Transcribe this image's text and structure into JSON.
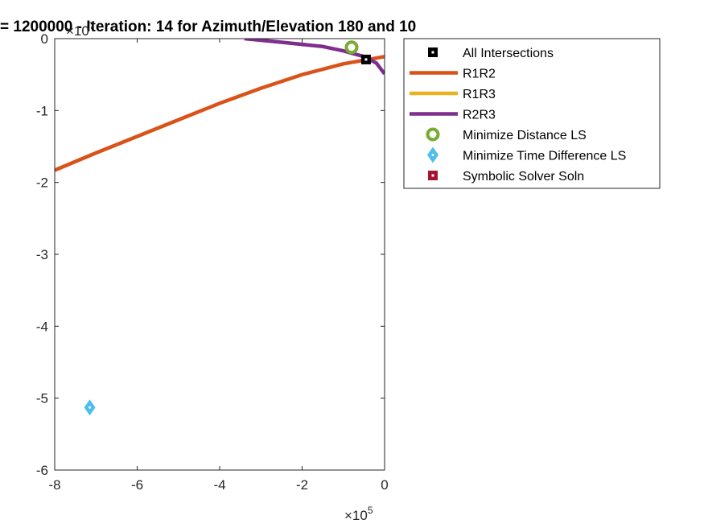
{
  "chart_data": {
    "type": "line",
    "title": "= 1200000 - Iteration: 14 for Azimuth/Elevation 180 and 10",
    "xlabel": "",
    "ylabel": "",
    "xlim": [
      -800000,
      0
    ],
    "ylim": [
      -60000000,
      0
    ],
    "x_ticks": [
      -8,
      -6,
      -4,
      -2,
      0
    ],
    "y_ticks": [
      -6,
      -5,
      -4,
      -3,
      -2,
      -1,
      0
    ],
    "x_tick_labels": [
      "-8",
      "-6",
      "-4",
      "-2",
      "0"
    ],
    "y_tick_labels": [
      "-6",
      "-5",
      "-4",
      "-3",
      "-2",
      "-1",
      "0"
    ],
    "x_exponent_label": "×10",
    "x_exponent_power": "5",
    "y_exponent_label": "×10",
    "y_exponent_power": "7",
    "grid": false,
    "legend_position": "outside-right-top",
    "series": [
      {
        "name": "All Intersections",
        "kind": "marker",
        "marker": "square",
        "color": "#000000",
        "x": [
          -45000
        ],
        "y": [
          -2900000
        ]
      },
      {
        "name": "R1R2",
        "kind": "line",
        "color": "#D95319",
        "x": [
          -800000,
          -700000,
          -600000,
          -500000,
          -400000,
          -300000,
          -200000,
          -100000,
          -50000,
          0
        ],
        "y": [
          -18300000,
          -15900000,
          -13600000,
          -11300000,
          -9000000,
          -6900000,
          -5000000,
          -3500000,
          -3000000,
          -2500000
        ]
      },
      {
        "name": "R1R3",
        "kind": "line",
        "color": "#EDB120",
        "x": [],
        "y": []
      },
      {
        "name": "R2R3",
        "kind": "line",
        "color": "#7E2F8E",
        "x": [
          -340000,
          -250000,
          -150000,
          -100000,
          -50000,
          -20000,
          0
        ],
        "y": [
          0,
          -500000,
          -1100000,
          -1700000,
          -2500000,
          -3400000,
          -4900000
        ]
      },
      {
        "name": "Minimize Distance LS",
        "kind": "marker",
        "marker": "circle",
        "color": "#77AC30",
        "x": [
          -80000
        ],
        "y": [
          -1200000
        ]
      },
      {
        "name": "Minimize Time Difference LS",
        "kind": "marker",
        "marker": "diamond",
        "color": "#4DBEEE",
        "x": [
          -715000
        ],
        "y": [
          -51300000
        ]
      },
      {
        "name": "Symbolic Solver Soln",
        "kind": "marker",
        "marker": "square",
        "color": "#A2142F",
        "x": [],
        "y": []
      }
    ]
  }
}
